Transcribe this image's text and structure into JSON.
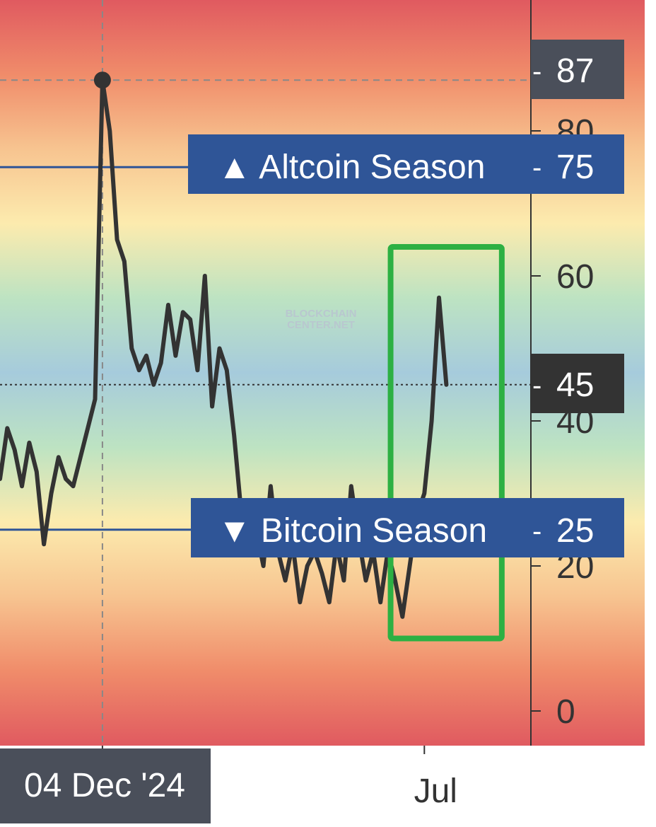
{
  "colors": {
    "line": "#333333",
    "threshold_line": "#2f5597",
    "badge_blue": "#2f5597",
    "badge_dark": "#333333",
    "badge_slate": "#4a4f5a",
    "highlight": "#2db043",
    "crosshair": "#888888",
    "axis": "#333333",
    "bands": [
      "#e05a60",
      "#f08c6a",
      "#f7c490",
      "#fcebae",
      "#bde3c2",
      "#a6cbdc",
      "#bde3c2",
      "#fcebae",
      "#f7c490",
      "#f08c6a",
      "#e05a60"
    ]
  },
  "watermark": {
    "line1": "BLOCKCHAIN",
    "line2": "CENTER.NET"
  },
  "crosshair": {
    "date_label": "04 Dec '24",
    "value_label": "87",
    "peak_value": 87,
    "peak_index": 14
  },
  "current": {
    "value_label": "45",
    "value": 45
  },
  "thresholds": {
    "altcoin": {
      "label": "▲ Altcoin Season",
      "value_label": "75",
      "value": 75
    },
    "bitcoin": {
      "label": "▼ Bitcoin Season",
      "value_label": "25",
      "value": 25
    }
  },
  "highlight_box": {
    "from_index": 53,
    "to_index": 71,
    "y_min": 10,
    "y_max": 64
  },
  "chart_data": {
    "type": "line",
    "title": "",
    "xlabel": "",
    "ylabel": "",
    "ylim": [
      0,
      100
    ],
    "y_ticks": [
      0,
      20,
      40,
      60,
      80
    ],
    "y_tick_labels": [
      "0",
      "20",
      "40",
      "60",
      "80"
    ],
    "x_tick_labels": [
      {
        "label": "04 Dec '24",
        "index": 14
      },
      {
        "label": "Jul",
        "index": 58
      }
    ],
    "grid": false,
    "series": [
      {
        "values": [
          32,
          39,
          36,
          31,
          37,
          33,
          23,
          30,
          35,
          32,
          31,
          35,
          39,
          43,
          87,
          80,
          65,
          62,
          50,
          47,
          49,
          45,
          48,
          56,
          49,
          55,
          54,
          47,
          60,
          42,
          50,
          47,
          38,
          27,
          22,
          25,
          20,
          31,
          22,
          18,
          23,
          15,
          20,
          22,
          19,
          15,
          23,
          18,
          31,
          24,
          18,
          22,
          15,
          22,
          18,
          13,
          20,
          27,
          30,
          40,
          57,
          45
        ]
      }
    ]
  }
}
